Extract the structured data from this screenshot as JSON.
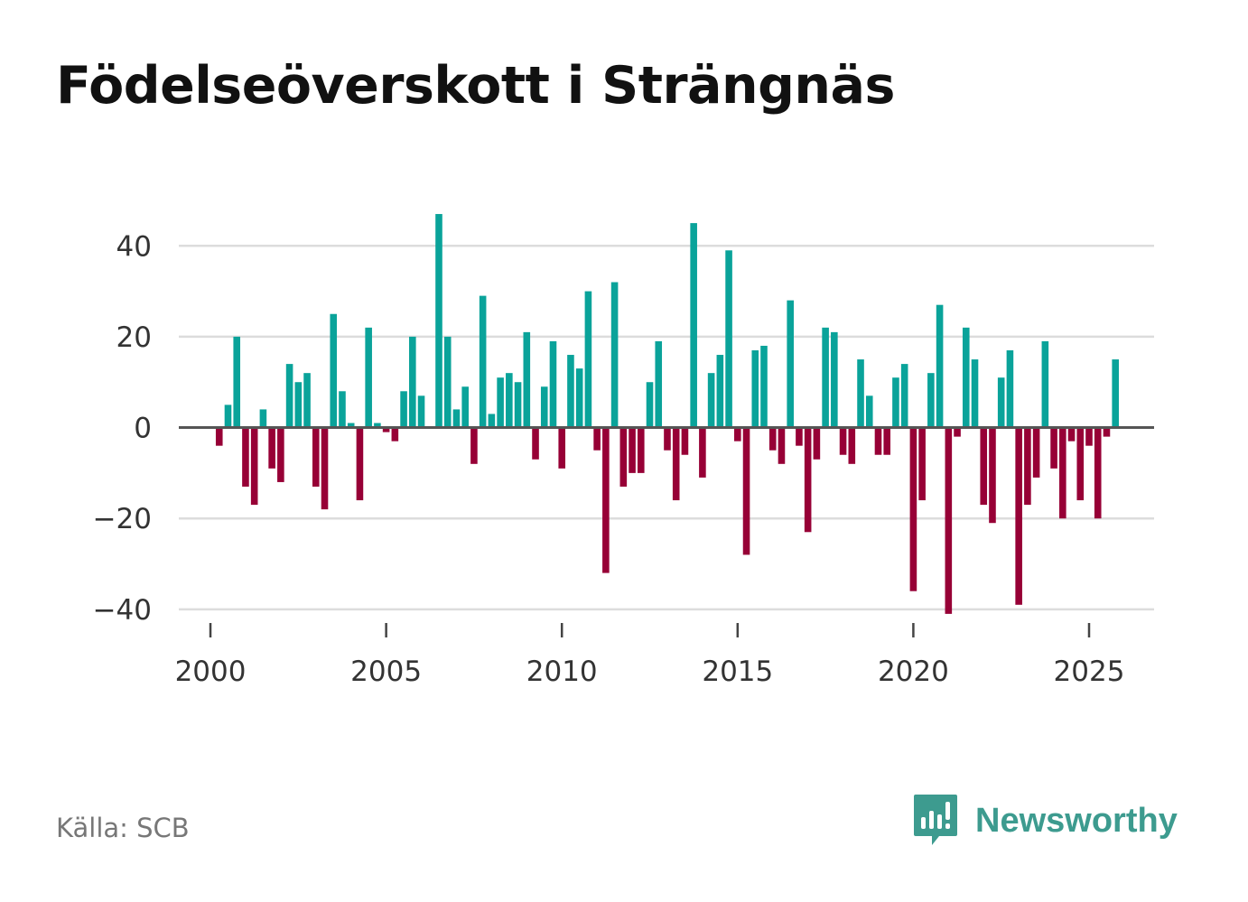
{
  "title": "Födelseöverskott i Strängnäs",
  "source": "Källa: SCB",
  "brand": {
    "name": "Newsworthy",
    "icon": "newsworthy-logo-icon",
    "color": "#3d9b8f"
  },
  "colors": {
    "positive": "#0aa39a",
    "negative": "#970036",
    "grid": "#dcdcdc",
    "zero": "#555555"
  },
  "chart_data": {
    "type": "bar",
    "title": "Födelseöverskott i Strängnäs",
    "xlabel": "",
    "ylabel": "",
    "grid": true,
    "ylim": [
      -45,
      48
    ],
    "xlim": [
      1999.1,
      2026.85
    ],
    "yticks": [
      40,
      20,
      0,
      -20,
      -40
    ],
    "ytick_labels": [
      "40",
      "20",
      "0",
      "−20",
      "−40"
    ],
    "xticks": [
      2000,
      2005,
      2010,
      2015,
      2020,
      2025
    ],
    "xtick_labels": [
      "2000",
      "2005",
      "2010",
      "2015",
      "2020",
      "2025"
    ],
    "start": 2000.0,
    "step": 0.25,
    "values": [
      0,
      -4,
      5,
      20,
      -13,
      -17,
      4,
      -9,
      -12,
      14,
      10,
      12,
      -13,
      -18,
      25,
      8,
      1,
      -16,
      22,
      1,
      -1,
      -3,
      8,
      20,
      7,
      0,
      47,
      20,
      4,
      9,
      -8,
      29,
      3,
      11,
      12,
      10,
      21,
      -7,
      9,
      19,
      -9,
      16,
      13,
      30,
      -5,
      -32,
      32,
      -13,
      -10,
      -10,
      10,
      19,
      -5,
      -16,
      -6,
      45,
      -11,
      12,
      16,
      39,
      -3,
      -28,
      17,
      18,
      -5,
      -8,
      28,
      -4,
      -23,
      -7,
      22,
      21,
      -6,
      -8,
      15,
      7,
      -6,
      -6,
      11,
      14,
      -36,
      -16,
      12,
      27,
      -41,
      -2,
      22,
      15,
      -17,
      -21,
      11,
      17,
      -39,
      -17,
      -11,
      19,
      -9,
      -20,
      -3,
      -16,
      -4,
      -20,
      -2,
      15
    ]
  }
}
